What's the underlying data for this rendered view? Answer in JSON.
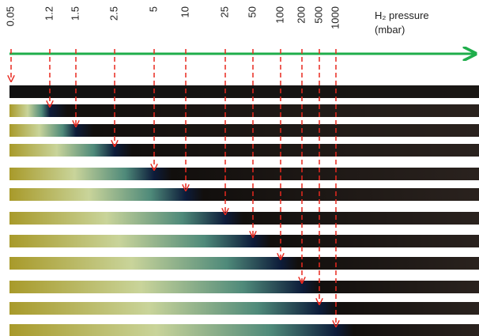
{
  "axis": {
    "title": "H₂ pressure",
    "unit": "(mbar)"
  },
  "pressures": [
    "0.05",
    "1.2",
    "1.5",
    "2.5",
    "5",
    "10",
    "25",
    "50",
    "100",
    "200",
    "500",
    "1000"
  ]
}
